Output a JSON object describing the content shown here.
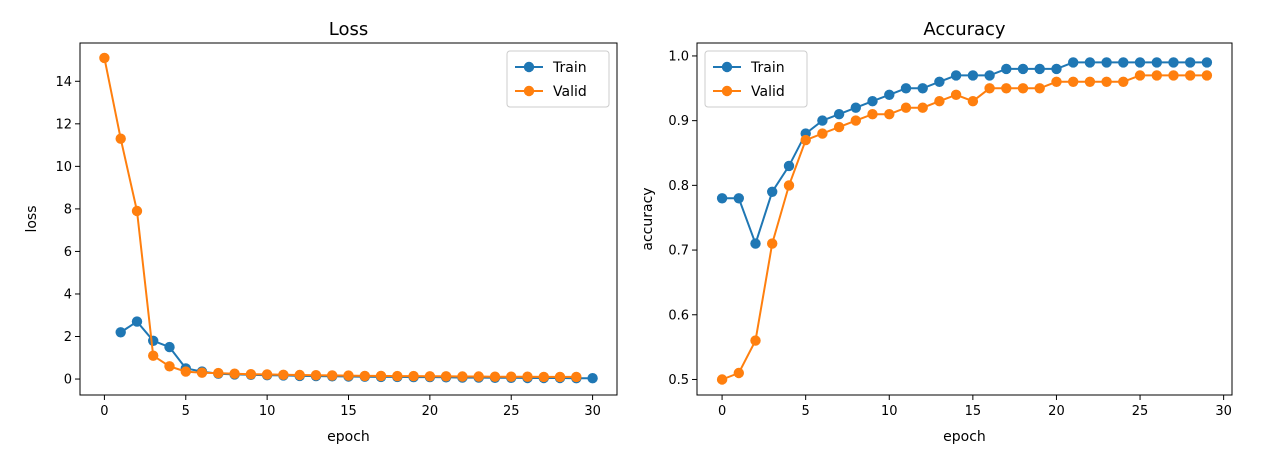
{
  "chart_data": [
    {
      "type": "line",
      "title": "Loss",
      "xlabel": "epoch",
      "ylabel": "loss",
      "xlim": [
        -1.5,
        31.5
      ],
      "ylim": [
        -0.75,
        15.8
      ],
      "xticks": [
        0,
        5,
        10,
        15,
        20,
        25,
        30
      ],
      "yticks": [
        0,
        2,
        4,
        6,
        8,
        10,
        12,
        14
      ],
      "grid": false,
      "legend": "top-right",
      "series": [
        {
          "name": "Train",
          "color": "#1f77b4",
          "x": [
            1,
            2,
            3,
            4,
            5,
            6,
            7,
            8,
            9,
            10,
            11,
            12,
            13,
            14,
            15,
            16,
            17,
            18,
            19,
            20,
            21,
            22,
            23,
            24,
            25,
            26,
            27,
            28,
            29,
            30
          ],
          "values": [
            2.2,
            2.7,
            1.8,
            1.5,
            0.5,
            0.35,
            0.25,
            0.22,
            0.2,
            0.18,
            0.17,
            0.15,
            0.14,
            0.13,
            0.12,
            0.11,
            0.1,
            0.1,
            0.09,
            0.09,
            0.08,
            0.07,
            0.07,
            0.06,
            0.06,
            0.05,
            0.05,
            0.05,
            0.04,
            0.04
          ]
        },
        {
          "name": "Valid",
          "color": "#ff7f0e",
          "x": [
            0,
            1,
            2,
            3,
            4,
            5,
            6,
            7,
            8,
            9,
            10,
            11,
            12,
            13,
            14,
            15,
            16,
            17,
            18,
            19,
            20,
            21,
            22,
            23,
            24,
            25,
            26,
            27,
            28,
            29
          ],
          "values": [
            15.1,
            11.3,
            7.9,
            1.1,
            0.6,
            0.35,
            0.3,
            0.28,
            0.25,
            0.23,
            0.22,
            0.2,
            0.19,
            0.18,
            0.17,
            0.16,
            0.15,
            0.15,
            0.14,
            0.14,
            0.13,
            0.13,
            0.12,
            0.12,
            0.11,
            0.11,
            0.11,
            0.1,
            0.1,
            0.1
          ]
        }
      ]
    },
    {
      "type": "line",
      "title": "Accuracy",
      "xlabel": "epoch",
      "ylabel": "accuracy",
      "xlim": [
        -1.5,
        30.5
      ],
      "ylim": [
        0.476,
        1.02
      ],
      "xticks": [
        0,
        5,
        10,
        15,
        20,
        25,
        30
      ],
      "yticks": [
        0.5,
        0.6,
        0.7,
        0.8,
        0.9,
        1.0
      ],
      "ytick_labels": [
        "0.5",
        "0.6",
        "0.7",
        "0.8",
        "0.9",
        "1.0"
      ],
      "grid": false,
      "legend": "top-left",
      "series": [
        {
          "name": "Train",
          "color": "#1f77b4",
          "x": [
            0,
            1,
            2,
            3,
            4,
            5,
            6,
            7,
            8,
            9,
            10,
            11,
            12,
            13,
            14,
            15,
            16,
            17,
            18,
            19,
            20,
            21,
            22,
            23,
            24,
            25,
            26,
            27,
            28,
            29
          ],
          "values": [
            0.78,
            0.78,
            0.71,
            0.79,
            0.83,
            0.88,
            0.9,
            0.91,
            0.92,
            0.93,
            0.94,
            0.95,
            0.95,
            0.96,
            0.97,
            0.97,
            0.97,
            0.98,
            0.98,
            0.98,
            0.98,
            0.99,
            0.99,
            0.99,
            0.99,
            0.99,
            0.99,
            0.99,
            0.99,
            0.99
          ]
        },
        {
          "name": "Valid",
          "color": "#ff7f0e",
          "x": [
            0,
            1,
            2,
            3,
            4,
            5,
            6,
            7,
            8,
            9,
            10,
            11,
            12,
            13,
            14,
            15,
            16,
            17,
            18,
            19,
            20,
            21,
            22,
            23,
            24,
            25,
            26,
            27,
            28,
            29
          ],
          "values": [
            0.5,
            0.51,
            0.56,
            0.71,
            0.8,
            0.87,
            0.88,
            0.89,
            0.9,
            0.91,
            0.91,
            0.92,
            0.92,
            0.93,
            0.94,
            0.93,
            0.95,
            0.95,
            0.95,
            0.95,
            0.96,
            0.96,
            0.96,
            0.96,
            0.96,
            0.97,
            0.97,
            0.97,
            0.97,
            0.97
          ]
        }
      ]
    }
  ]
}
